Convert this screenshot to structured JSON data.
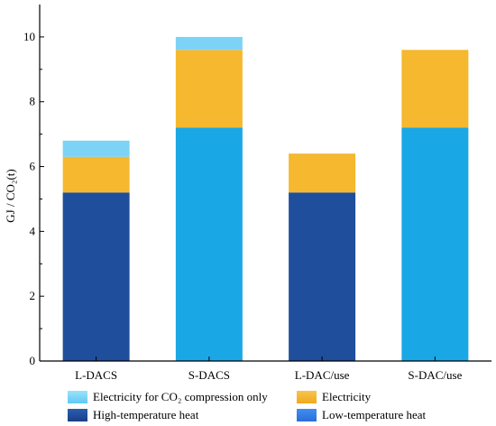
{
  "chart_data": {
    "type": "bar",
    "stacked": true,
    "categories": [
      "L-DACS",
      "S-DACS",
      "L-DAC/use",
      "S-DAC/use"
    ],
    "ylabel": "GJ / CO₂(t)",
    "xlabel": "",
    "ylim": [
      0,
      11
    ],
    "yticks": [
      0,
      2,
      4,
      6,
      8,
      10
    ],
    "grid": false,
    "legend_position": "bottom",
    "series": [
      {
        "name": "High-temperature heat",
        "color": "#1f4e9c",
        "values": [
          5.2,
          0,
          5.2,
          0
        ]
      },
      {
        "name": "Low-temperature heat",
        "color": "#1aa7e6",
        "values": [
          0,
          7.2,
          0,
          7.2
        ]
      },
      {
        "name": "Electricity",
        "color": "#f5b82e",
        "values": [
          1.1,
          2.4,
          1.2,
          2.4
        ]
      },
      {
        "name": "Electricity for CO₂ compression only",
        "color": "#7dd3f5",
        "values": [
          0.5,
          0.4,
          0,
          0
        ]
      }
    ],
    "legend": [
      {
        "label": "Electricity for CO₂ compression only",
        "series": 3
      },
      {
        "label": "Electricity",
        "series": 2
      },
      {
        "label": "High-temperature heat",
        "series": 0
      },
      {
        "label": "Low-temperature heat",
        "series": 1
      }
    ]
  }
}
